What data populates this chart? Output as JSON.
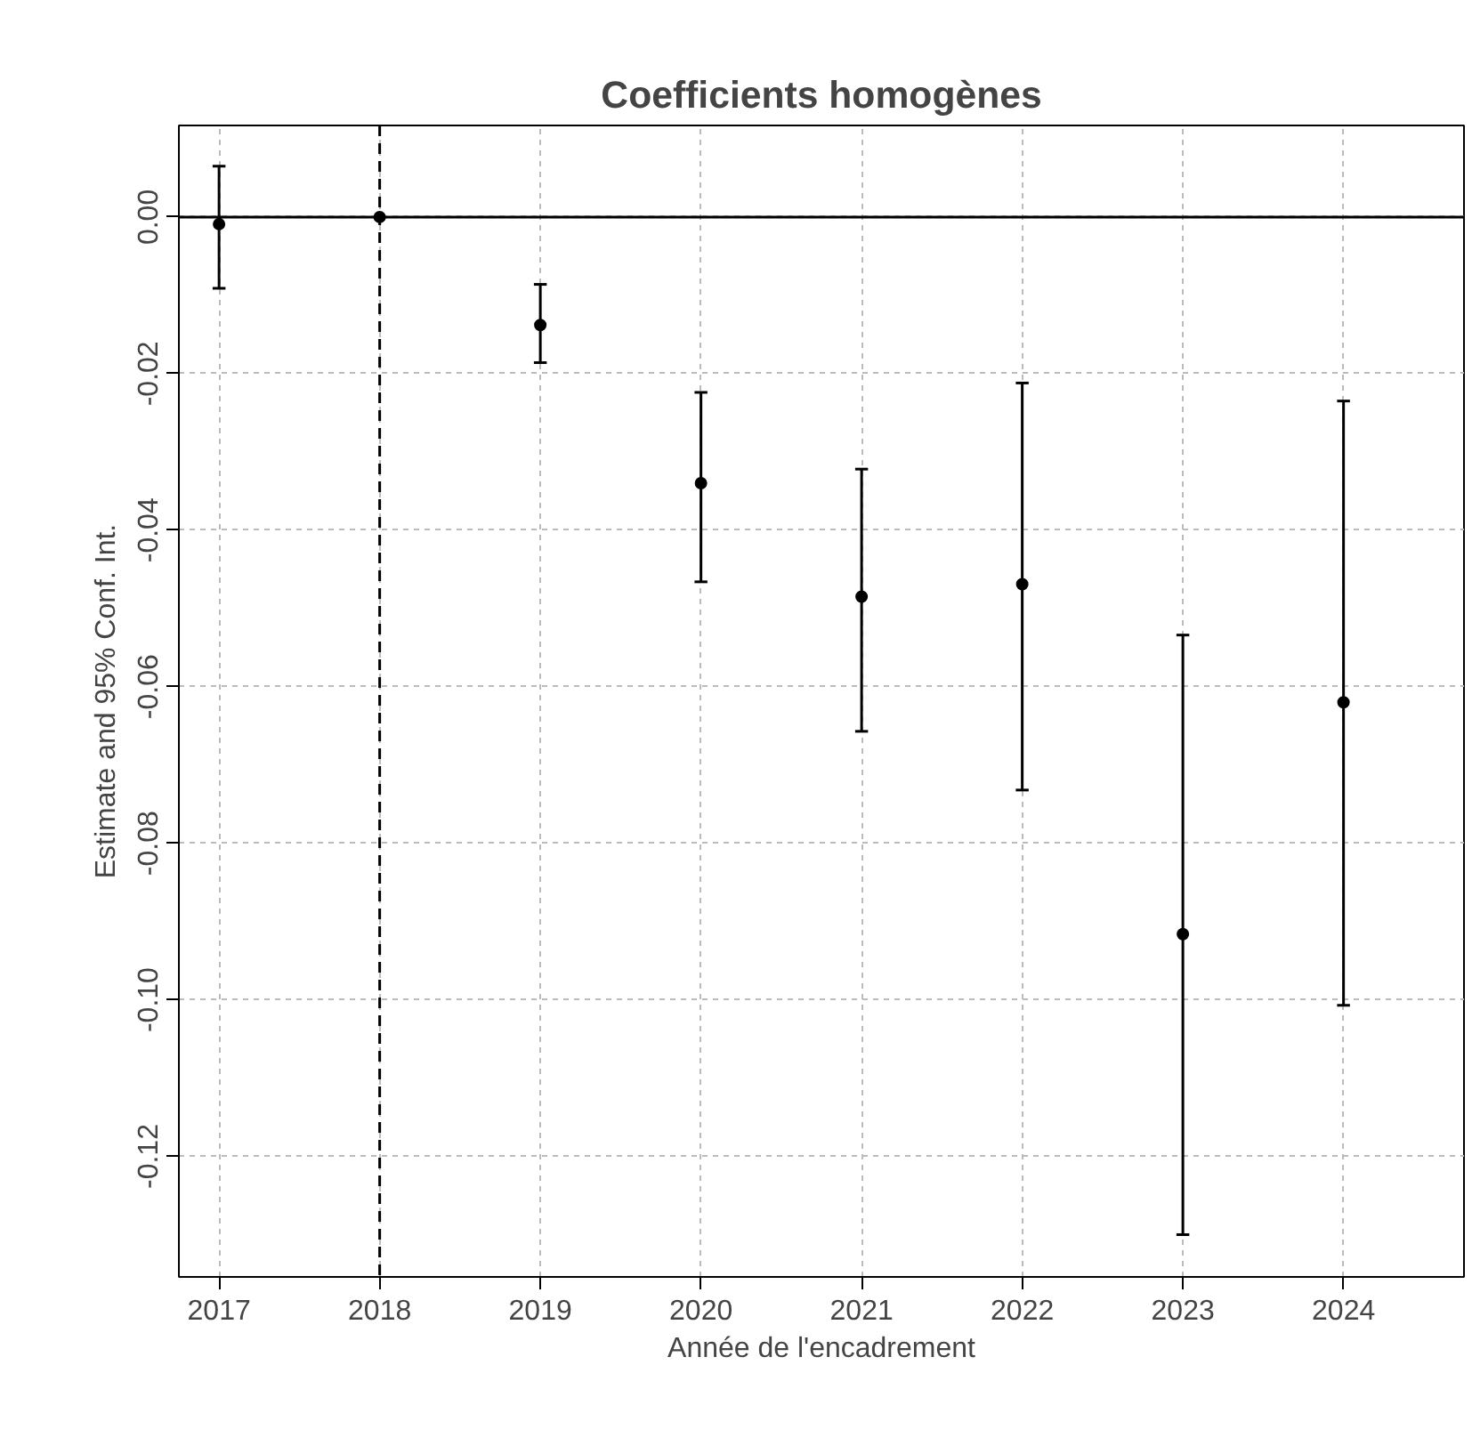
{
  "chart_data": {
    "type": "scatter",
    "title": "Coefficients homogènes",
    "xlabel": "Année de l'encadrement",
    "ylabel": "Estimate and 95% Conf. Int.",
    "x": [
      2017,
      2018,
      2019,
      2020,
      2021,
      2022,
      2023,
      2024
    ],
    "series": [
      {
        "color": "#000000",
        "values": [
          -0.0009,
          0,
          -0.0138,
          -0.034,
          -0.0485,
          -0.0469,
          -0.0916,
          -0.062
        ],
        "errors": [
          [
            -0.0091,
            0.0065
          ],
          null,
          [
            -0.0186,
            -0.0086
          ],
          [
            -0.0466,
            -0.0224
          ],
          [
            -0.0657,
            -0.0322
          ],
          [
            -0.0732,
            -0.0212
          ],
          [
            -0.13,
            -0.0534
          ],
          [
            -0.1007,
            -0.0235
          ]
        ]
      }
    ],
    "xlim": [
      2016.75,
      2024.75
    ],
    "ylim": [
      -0.1354,
      0.0117
    ],
    "xticks": [
      2017,
      2018,
      2019,
      2020,
      2021,
      2022,
      2023,
      2024
    ],
    "yticks": [
      {
        "value": -0.12,
        "label": "-0.12"
      },
      {
        "value": -0.1,
        "label": "-0.10"
      },
      {
        "value": -0.08,
        "label": "-0.08"
      },
      {
        "value": -0.06,
        "label": "-0.06"
      },
      {
        "value": -0.04,
        "label": "-0.04"
      },
      {
        "value": -0.02,
        "label": "-0.02"
      },
      {
        "value": 0,
        "label": "0.00"
      }
    ],
    "ref_lines": [
      {
        "axis": "y",
        "value": 0,
        "color": "#000000",
        "line_style": "solid"
      },
      {
        "axis": "x",
        "value": 2018,
        "color": "#000000",
        "line_style": "dashed"
      }
    ],
    "grid": true,
    "marker": "circle"
  }
}
